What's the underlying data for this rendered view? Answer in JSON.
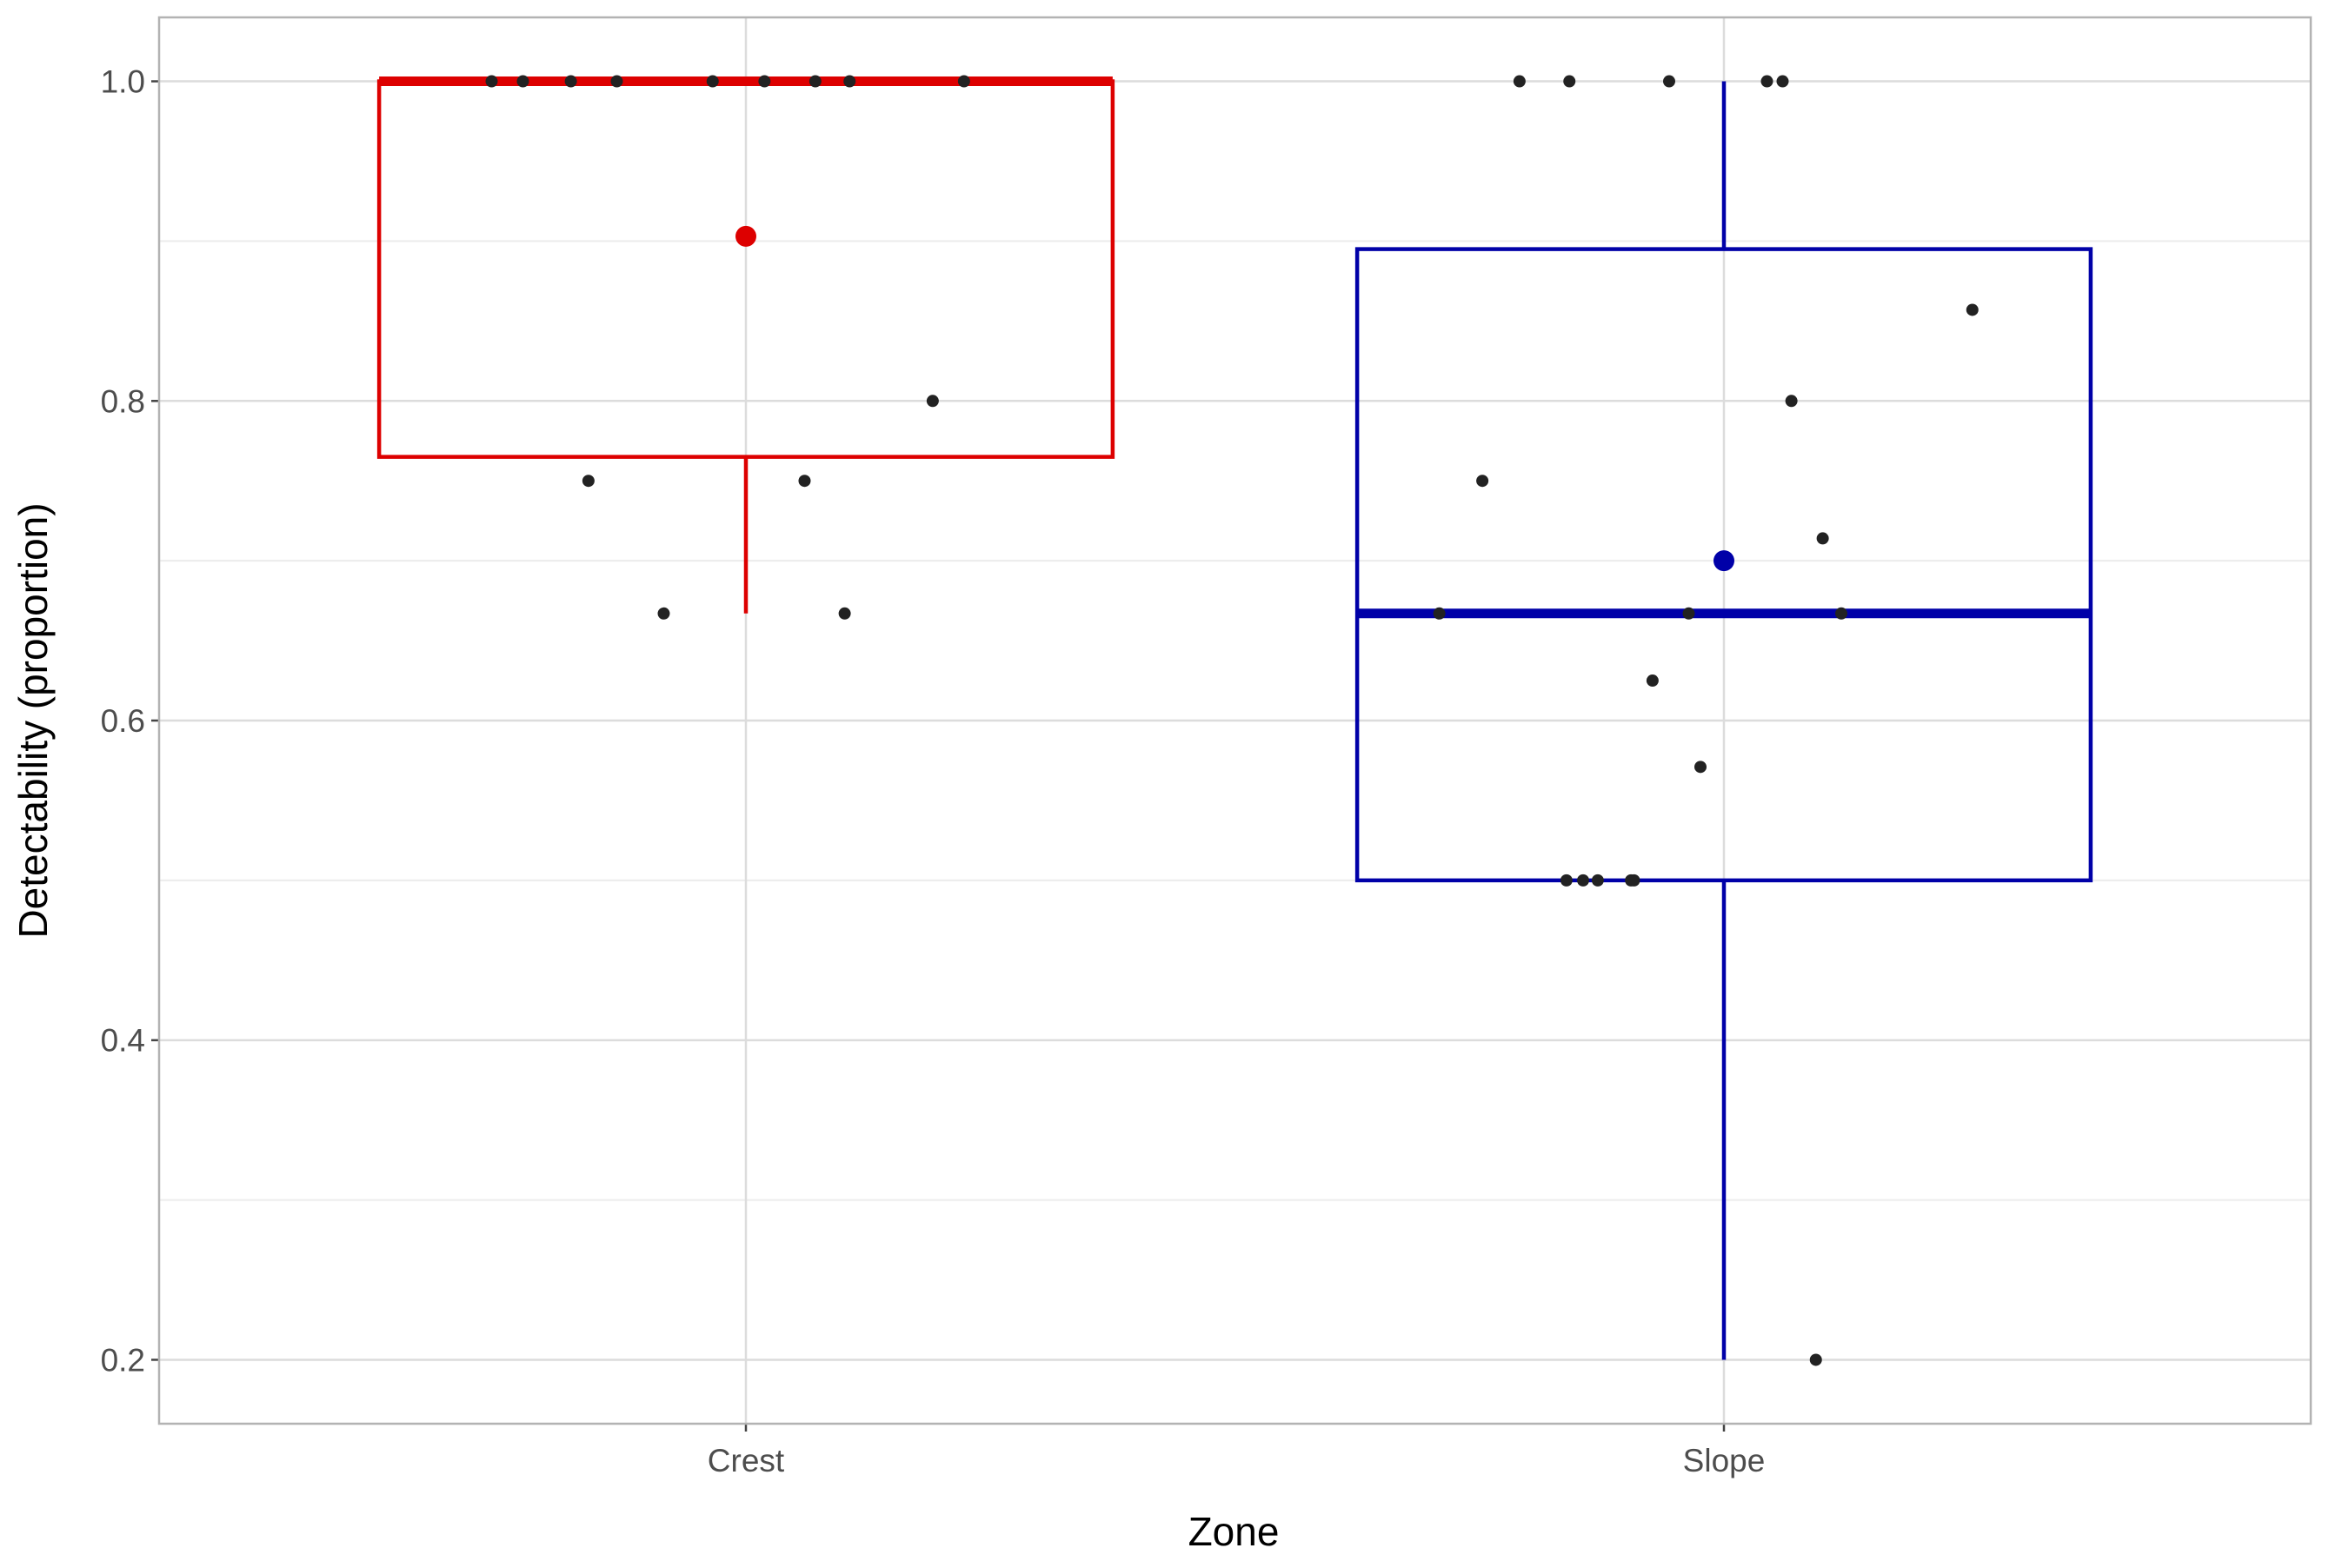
{
  "chart_data": {
    "type": "box",
    "x_label": "Zone",
    "y_label": "Detectability (proportion)",
    "categories": [
      "Crest",
      "Slope"
    ],
    "xlim": [
      0.4,
      2.6
    ],
    "ylim": [
      0.16,
      1.04
    ],
    "yticks": [
      0.2,
      0.4,
      0.6,
      0.8,
      {
        "value": 1,
        "label": "1.0"
      }
    ],
    "grid": true,
    "boxes": [
      {
        "color": "#dd0000",
        "whisker_low": 0.667,
        "q1": 0.765,
        "median": 1,
        "q3": 1,
        "whisker_high": 1,
        "mean": 0.903
      },
      {
        "color": "#0000a8",
        "whisker_low": 0.2,
        "q1": 0.5,
        "median": 0.667,
        "q3": 0.895,
        "whisker_high": 1,
        "mean": 0.7
      }
    ],
    "points": {
      "color": "#222222",
      "x": [
        0.74,
        0.772,
        0.821,
        0.868,
        0.966,
        1.019,
        1.071,
        1.106,
        1.223,
        0.839,
        1.06,
        0.916,
        1.101,
        1.191,
        1.791,
        1.842,
        1.944,
        2.044,
        2.06,
        2.254,
        2.069,
        1.753,
        2.101,
        1.709,
        1.964,
        2.12,
        1.927,
        1.976,
        1.839,
        1.856,
        1.871,
        1.905,
        1.908,
        2.094
      ],
      "y": [
        1,
        1,
        1,
        1,
        1,
        1,
        1,
        1,
        1,
        0.75,
        0.75,
        0.667,
        0.667,
        0.8,
        1,
        1,
        1,
        1,
        1,
        0.857,
        0.8,
        0.75,
        0.714,
        0.667,
        0.667,
        0.667,
        0.625,
        0.571,
        0.5,
        0.5,
        0.5,
        0.5,
        0.5,
        0.2
      ]
    }
  }
}
